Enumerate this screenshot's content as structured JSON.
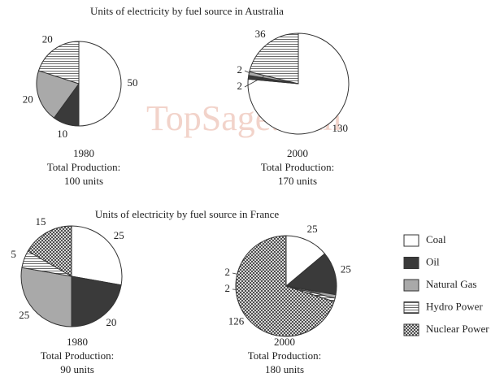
{
  "chart_data": [
    {
      "type": "pie",
      "title": "Units of electricity by fuel source in Australia",
      "year": "1980",
      "caption": "Total Production:",
      "total_label": "100 units",
      "categories": [
        "Coal",
        "Oil",
        "Natural Gas",
        "Hydro Power"
      ],
      "values": [
        50,
        10,
        20,
        20
      ],
      "colors": [
        "#ffffff",
        "#3a3a3a",
        "#a9a9a9",
        "#ffffff"
      ],
      "patterns": [
        null,
        null,
        null,
        "horizontal"
      ]
    },
    {
      "type": "pie",
      "year": "2000",
      "caption": "Total Production:",
      "total_label": "170 units",
      "categories": [
        "Coal",
        "Oil",
        "Natural Gas",
        "Hydro Power"
      ],
      "values": [
        130,
        2,
        2,
        36
      ],
      "colors": [
        "#ffffff",
        "#3a3a3a",
        "#a9a9a9",
        "#ffffff"
      ],
      "patterns": [
        null,
        null,
        null,
        "horizontal"
      ]
    },
    {
      "type": "pie",
      "title": "Units of electricity by fuel source in France",
      "year": "1980",
      "caption": "Total Production:",
      "total_label": "90 units",
      "categories": [
        "Coal",
        "Oil",
        "Natural Gas",
        "Hydro Power",
        "Nuclear Power"
      ],
      "values": [
        25,
        20,
        25,
        5,
        15
      ],
      "colors": [
        "#ffffff",
        "#3a3a3a",
        "#a9a9a9",
        "#ffffff",
        "#ffffff"
      ],
      "patterns": [
        null,
        null,
        null,
        "horizontal",
        "crosshatch"
      ]
    },
    {
      "type": "pie",
      "year": "2000",
      "caption": "Total Production:",
      "total_label": "180 units",
      "categories": [
        "Coal",
        "Oil",
        "Natural Gas",
        "Hydro Power",
        "Nuclear Power"
      ],
      "values": [
        25,
        25,
        2,
        2,
        126
      ],
      "colors": [
        "#ffffff",
        "#3a3a3a",
        "#a9a9a9",
        "#ffffff",
        "#ffffff"
      ],
      "patterns": [
        null,
        null,
        null,
        "horizontal",
        "crosshatch"
      ],
      "legend": "right"
    }
  ],
  "watermark": "TopSage.com"
}
